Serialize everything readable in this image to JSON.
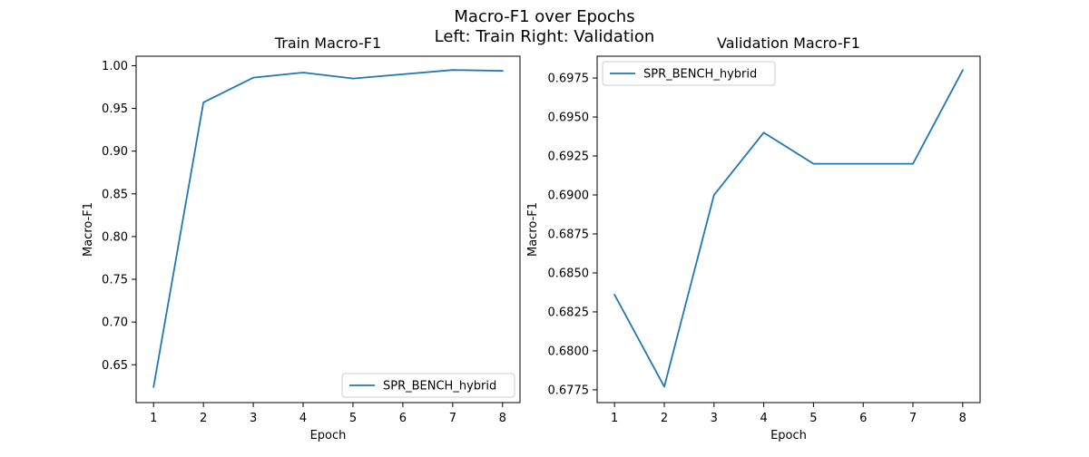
{
  "figure": {
    "title_line1": "Macro-F1 over Epochs",
    "title_line2": "Left: Train  Right: Validation"
  },
  "colors": {
    "series": "#1f77b4",
    "axes": "#000000",
    "legend_border": "#cccccc",
    "background": "#ffffff"
  },
  "chart_data": [
    {
      "type": "line",
      "title": "Train Macro-F1",
      "xlabel": "Epoch",
      "ylabel": "Macro-F1",
      "x": [
        1,
        2,
        3,
        4,
        5,
        6,
        7,
        8
      ],
      "xticks": [
        1,
        2,
        3,
        4,
        5,
        6,
        7,
        8
      ],
      "yticks": [
        0.65,
        0.7,
        0.75,
        0.8,
        0.85,
        0.9,
        0.95,
        1.0
      ],
      "ytick_labels": [
        "0.65",
        "0.70",
        "0.75",
        "0.80",
        "0.85",
        "0.90",
        "0.95",
        "1.00"
      ],
      "xlim": [
        0.65,
        8.35
      ],
      "ylim": [
        0.6057,
        1.0111
      ],
      "legend_position": "lower right",
      "grid": false,
      "series": [
        {
          "name": "SPR_BENCH_hybrid",
          "values": [
            0.624,
            0.957,
            0.986,
            0.992,
            0.985,
            0.99,
            0.995,
            0.994
          ]
        }
      ]
    },
    {
      "type": "line",
      "title": "Validation Macro-F1",
      "xlabel": "Epoch",
      "ylabel": "Macro-F1",
      "x": [
        1,
        2,
        3,
        4,
        5,
        6,
        7,
        8
      ],
      "xticks": [
        1,
        2,
        3,
        4,
        5,
        6,
        7,
        8
      ],
      "yticks": [
        0.6775,
        0.68,
        0.6825,
        0.685,
        0.6875,
        0.69,
        0.6925,
        0.695,
        0.6975
      ],
      "ytick_labels": [
        "0.6775",
        "0.6800",
        "0.6825",
        "0.6850",
        "0.6875",
        "0.6900",
        "0.6925",
        "0.6950",
        "0.6975"
      ],
      "xlim": [
        0.65,
        8.35
      ],
      "ylim": [
        0.67668,
        0.6989
      ],
      "legend_position": "upper left",
      "grid": false,
      "series": [
        {
          "name": "SPR_BENCH_hybrid",
          "values": [
            0.6836,
            0.6777,
            0.69,
            0.694,
            0.692,
            0.692,
            0.692,
            0.698
          ]
        }
      ]
    }
  ]
}
